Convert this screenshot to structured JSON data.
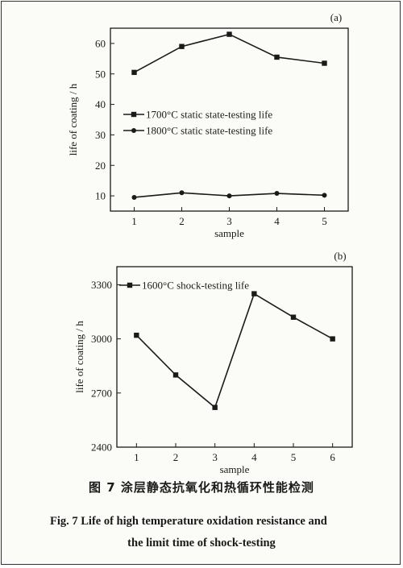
{
  "chart_data": [
    {
      "type": "line",
      "panel_label": "(a)",
      "x": [
        1,
        2,
        3,
        4,
        5
      ],
      "xlabel": "sample",
      "ylabel": "life of coating / h",
      "xlim": [
        0.5,
        5.5
      ],
      "ylim": [
        5,
        65
      ],
      "yticks": [
        10,
        20,
        30,
        40,
        50,
        60
      ],
      "legend_position": "middle-left",
      "series": [
        {
          "name": "1700°C static state-testing life",
          "marker": "square",
          "values": [
            50.5,
            59,
            63,
            55.5,
            53.5
          ]
        },
        {
          "name": "1800°C static state-testing life",
          "marker": "circle",
          "values": [
            9.5,
            11,
            10,
            10.8,
            10.2
          ]
        }
      ]
    },
    {
      "type": "line",
      "panel_label": "(b)",
      "x": [
        1,
        2,
        3,
        4,
        5,
        6
      ],
      "xlabel": "sample",
      "ylabel": "life of coating / h",
      "xlim": [
        0.5,
        6.5
      ],
      "ylim": [
        2400,
        3400
      ],
      "yticks": [
        2400,
        2700,
        3000,
        3300
      ],
      "legend_position": "top-left",
      "series": [
        {
          "name": "1600°C shock-testing life",
          "marker": "square",
          "values": [
            3020,
            2800,
            2620,
            3250,
            3120,
            3000
          ]
        }
      ]
    }
  ],
  "caption": {
    "chinese": "图 7   涂层静态抗氧化和热循环性能检测",
    "english_line1": "Fig. 7   Life of high temperature oxidation resistance and",
    "english_line2": "the limit time of shock-testing"
  }
}
